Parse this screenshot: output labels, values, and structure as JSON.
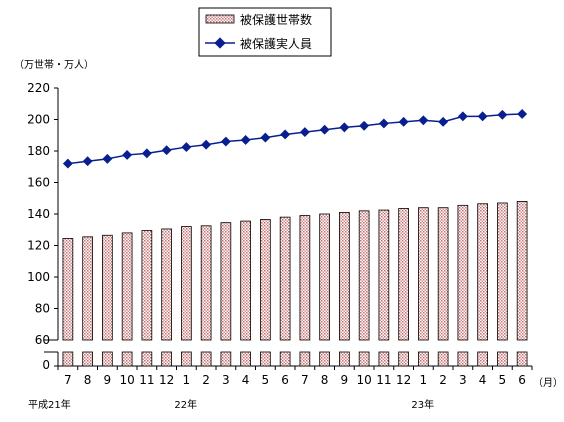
{
  "chart_data": {
    "type": "bar",
    "unit_label": "（万世帯・万人）",
    "month_unit": "（月）",
    "categories": [
      "7",
      "8",
      "9",
      "10",
      "11",
      "12",
      "1",
      "2",
      "3",
      "4",
      "5",
      "6",
      "7",
      "8",
      "9",
      "10",
      "11",
      "12",
      "1",
      "2",
      "3",
      "4",
      "5",
      "6"
    ],
    "year_labels": [
      {
        "label": "平成21年",
        "index": 0
      },
      {
        "label": "22年",
        "index": 6
      },
      {
        "label": "23年",
        "index": 18
      }
    ],
    "y_ticks": [
      "0",
      "60",
      "80",
      "100",
      "120",
      "140",
      "160",
      "180",
      "200",
      "220"
    ],
    "ylim": [
      0,
      220
    ],
    "axis_break": true,
    "grid": false,
    "legend_position": "top-center",
    "series": [
      {
        "name": "被保護世帯数",
        "type": "bar",
        "color": "#c07070",
        "values": [
          124.5,
          125.5,
          126.5,
          128,
          129.5,
          130.5,
          132,
          132.5,
          134.5,
          135.5,
          136.5,
          138,
          139,
          140,
          141,
          142,
          142.5,
          143.5,
          144,
          144,
          145.5,
          146.5,
          147,
          148
        ]
      },
      {
        "name": "被保護実人員",
        "type": "line",
        "color": "#0a1f8f",
        "values": [
          172,
          173.5,
          175,
          177.5,
          178.5,
          180.5,
          182.5,
          184,
          186,
          187,
          188.5,
          190.5,
          192,
          193.5,
          195,
          196,
          197.5,
          198.5,
          199.5,
          198.5,
          202,
          202,
          203,
          203.5
        ]
      }
    ]
  }
}
